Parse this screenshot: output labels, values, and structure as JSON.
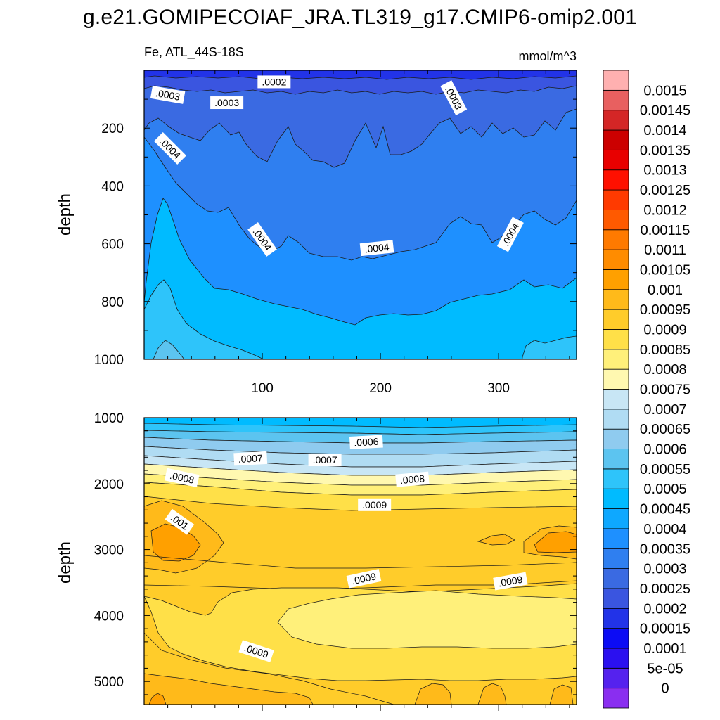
{
  "title": "g.e21.GOMIPECOIAF_JRA.TL319_g17.CMIP6-omip2.001",
  "variable_label": "Fe, ATL_44S-18S",
  "units_label": "mmol/m^3",
  "colors": {
    "background": "#ffffff",
    "contour_line": "#1a1a1a"
  },
  "chart_data": [
    {
      "type": "heatmap",
      "panel": "upper",
      "ylabel": "depth",
      "xlabel": "",
      "xlim": [
        0,
        366
      ],
      "ylim": [
        1000,
        0
      ],
      "xticks": [
        100,
        200,
        300
      ],
      "xtick_labels": [
        "100",
        "200",
        "300"
      ],
      "yticks": [
        200,
        400,
        600,
        800,
        1000
      ],
      "ytick_labels": [
        "200",
        "400",
        "600",
        "800",
        "1000"
      ],
      "contour_labels": [
        {
          "text": ".0002",
          "x": 110,
          "y": 40,
          "angle": 0
        },
        {
          "text": ".0003",
          "x": 20,
          "y": 85,
          "angle": 10
        },
        {
          "text": ".0003",
          "x": 70,
          "y": 112,
          "angle": 0
        },
        {
          "text": ".0003",
          "x": 262,
          "y": 95,
          "angle": 62
        },
        {
          "text": ".0004",
          "x": 22,
          "y": 270,
          "angle": 45
        },
        {
          "text": ".0004",
          "x": 100,
          "y": 585,
          "angle": 55
        },
        {
          "text": ".0004",
          "x": 197,
          "y": 615,
          "angle": -6
        },
        {
          "text": ".0004",
          "x": 310,
          "y": 568,
          "angle": -62
        }
      ]
    },
    {
      "type": "heatmap",
      "panel": "lower",
      "ylabel": "depth",
      "xlabel": "",
      "xlim": [
        0,
        366
      ],
      "ylim": [
        5350,
        1000
      ],
      "xticks": [
        100,
        200,
        300
      ],
      "yticks": [
        1000,
        2000,
        3000,
        4000,
        5000
      ],
      "ytick_labels": [
        "1000",
        "2000",
        "3000",
        "4000",
        "5000"
      ],
      "contour_labels": [
        {
          "text": ".0006",
          "x": 188,
          "y": 1370,
          "angle": -3
        },
        {
          "text": ".0007",
          "x": 90,
          "y": 1620,
          "angle": -3
        },
        {
          "text": ".0007",
          "x": 153,
          "y": 1640,
          "angle": 0
        },
        {
          "text": ".0008",
          "x": 32,
          "y": 1910,
          "angle": 12
        },
        {
          "text": ".0008",
          "x": 227,
          "y": 1935,
          "angle": -5
        },
        {
          "text": ".0009",
          "x": 195,
          "y": 2320,
          "angle": 0
        },
        {
          "text": ".001",
          "x": 30,
          "y": 2580,
          "angle": 35
        },
        {
          "text": ".0009",
          "x": 186,
          "y": 3440,
          "angle": -12
        },
        {
          "text": ".0009",
          "x": 310,
          "y": 3480,
          "angle": -10
        },
        {
          "text": ".0009",
          "x": 95,
          "y": 4540,
          "angle": 18
        }
      ]
    },
    {
      "type": "colorbar",
      "levels": [
        "0",
        "5e-05",
        "0.0001",
        "0.00015",
        "0.0002",
        "0.00025",
        "0.0003",
        "0.00035",
        "0.0004",
        "0.00045",
        "0.0005",
        "0.00055",
        "0.0006",
        "0.00065",
        "0.0007",
        "0.00075",
        "0.0008",
        "0.00085",
        "0.0009",
        "0.00095",
        "0.001",
        "0.00105",
        "0.0011",
        "0.00115",
        "0.0012",
        "0.00125",
        "0.0013",
        "0.00135",
        "0.0014",
        "0.00145",
        "0.0015"
      ],
      "colors": [
        "#8a2ef0",
        "#5522ee",
        "#2b10f0",
        "#0c0cf5",
        "#2233e8",
        "#3a55e0",
        "#3a6ae2",
        "#2f7ff0",
        "#1e90ff",
        "#0ea8ff",
        "#00bbff",
        "#2ec4fa",
        "#5cc4f0",
        "#8fcbef",
        "#b0dcf3",
        "#c8e6f5",
        "#fff8b0",
        "#fff07a",
        "#ffe048",
        "#ffcc2a",
        "#ffba1a",
        "#ffa000",
        "#ff8c00",
        "#ff7a00",
        "#ff5a00",
        "#ff3a00",
        "#ff1000",
        "#e80000",
        "#cc0000",
        "#d42626",
        "#e86060",
        "#ffb0b0"
      ]
    }
  ]
}
